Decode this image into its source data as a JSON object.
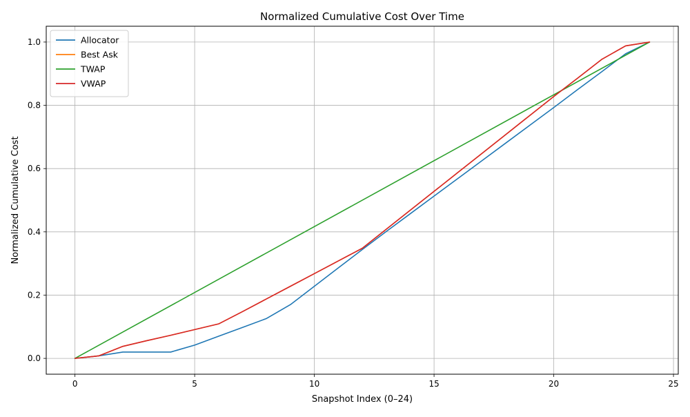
{
  "chart_data": {
    "type": "line",
    "title": "Normalized Cumulative Cost Over Time",
    "xlabel": "Snapshot Index (0–24)",
    "ylabel": "Normalized Cumulative Cost",
    "xlim": [
      -1.2,
      25.2
    ],
    "ylim": [
      -0.05,
      1.05
    ],
    "xticks": [
      0,
      5,
      10,
      15,
      20,
      25
    ],
    "xtick_labels": [
      "0",
      "5",
      "10",
      "15",
      "20",
      "25"
    ],
    "yticks": [
      0.0,
      0.2,
      0.4,
      0.6,
      0.8,
      1.0
    ],
    "ytick_labels": [
      "0.0",
      "0.2",
      "0.4",
      "0.6",
      "0.8",
      "1.0"
    ],
    "grid": true,
    "legend_position": "top-left",
    "series": [
      {
        "name": "Allocator",
        "color": "#1f77b4",
        "x": [
          0,
          1,
          2,
          3,
          4,
          5,
          6,
          7,
          8,
          9,
          10,
          11,
          12,
          13,
          14,
          15,
          16,
          17,
          18,
          19,
          20,
          21,
          22,
          23,
          24
        ],
        "y": [
          0.0,
          0.008,
          0.02,
          0.02,
          0.02,
          0.042,
          0.07,
          0.098,
          0.126,
          0.17,
          0.228,
          0.286,
          0.344,
          0.401,
          0.457,
          0.513,
          0.569,
          0.625,
          0.681,
          0.737,
          0.793,
          0.85,
          0.906,
          0.963,
          1.0
        ]
      },
      {
        "name": "Best Ask",
        "color": "#ff7f0e",
        "x": [
          0,
          1,
          2,
          3,
          4,
          5,
          6,
          7,
          8,
          9,
          10,
          11,
          12,
          13,
          14,
          15,
          16,
          17,
          18,
          19,
          20,
          21,
          22,
          23,
          24
        ],
        "y": [
          0.0,
          0.008,
          0.038,
          0.056,
          0.073,
          0.091,
          0.109,
          0.148,
          0.188,
          0.228,
          0.268,
          0.308,
          0.348,
          0.408,
          0.468,
          0.528,
          0.588,
          0.648,
          0.708,
          0.768,
          0.828,
          0.886,
          0.945,
          0.988,
          1.0
        ]
      },
      {
        "name": "TWAP",
        "color": "#2ca02c",
        "x": [
          0,
          24
        ],
        "y": [
          0.0,
          1.0
        ]
      },
      {
        "name": "VWAP",
        "color": "#d62728",
        "x": [
          0,
          1,
          2,
          3,
          4,
          5,
          6,
          7,
          8,
          9,
          10,
          11,
          12,
          13,
          14,
          15,
          16,
          17,
          18,
          19,
          20,
          21,
          22,
          23,
          24
        ],
        "y": [
          0.0,
          0.008,
          0.038,
          0.056,
          0.073,
          0.091,
          0.109,
          0.148,
          0.188,
          0.228,
          0.268,
          0.308,
          0.348,
          0.408,
          0.468,
          0.528,
          0.588,
          0.648,
          0.708,
          0.768,
          0.828,
          0.886,
          0.945,
          0.988,
          1.0
        ]
      }
    ]
  }
}
